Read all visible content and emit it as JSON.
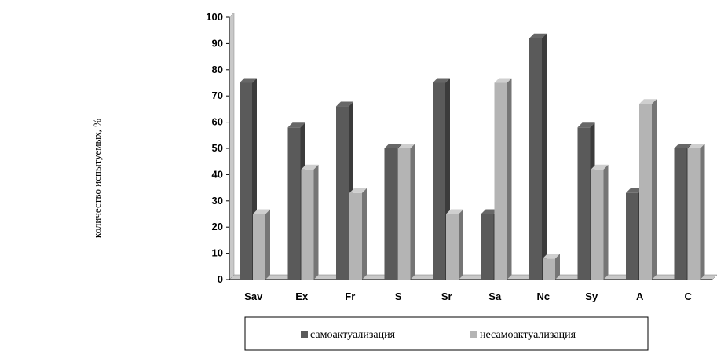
{
  "chart_data": {
    "type": "bar",
    "categories": [
      "Sav",
      "Ex",
      "Fr",
      "S",
      "Sr",
      "Sa",
      "Nc",
      "Sy",
      "A",
      "C"
    ],
    "series": [
      {
        "name": "самоактуализация",
        "values": [
          75,
          58,
          66,
          50,
          75,
          25,
          92,
          58,
          33,
          50
        ],
        "color": "#5a5a5a"
      },
      {
        "name": "несамоактуализация",
        "values": [
          25,
          42,
          33,
          50,
          25,
          75,
          8,
          42,
          67,
          50
        ],
        "color": "#b4b4b4"
      }
    ],
    "ylabel": "количество испытуемых, %",
    "ylim": [
      0,
      100
    ],
    "yticks": [
      0,
      10,
      20,
      30,
      40,
      50,
      60,
      70,
      80,
      90,
      100
    ],
    "grid": false,
    "legend_position": "bottom"
  }
}
